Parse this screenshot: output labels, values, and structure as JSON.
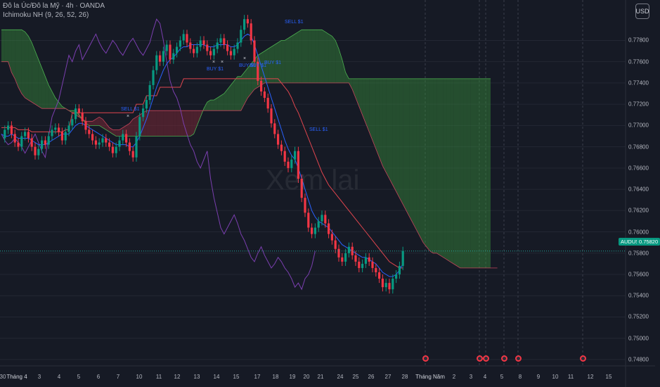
{
  "header": {
    "symbol_line": "Đô la Úc/Đô la Mỹ · 4h · OANDA",
    "indicator_line": "Ichimoku NH (9, 26, 52, 26)"
  },
  "currency_button": "USD",
  "watermark": "Xem lai",
  "price_badge": {
    "symbol": "AUDUSD",
    "price": "0.75820"
  },
  "signals": [
    "SELL $1",
    "BUY $1",
    "BUY $1",
    "BUY $1",
    "BUY $1",
    "SELL $1",
    "SELL $1"
  ],
  "colors": {
    "background": "#161a25",
    "up_candle": "#089981",
    "down_candle": "#f23645",
    "tenkan": "#2962ff",
    "kijun": "#e0454e",
    "chikou": "#7b3fb0",
    "cloud_bull": "#388e3c",
    "cloud_bear": "#8b2a3a",
    "price_line": "#26a69a"
  },
  "chart_data": {
    "type": "candlestick",
    "title": "Đô la Úc/Đô la Mỹ · 4h · OANDA",
    "indicator": "Ichimoku NH (9, 26, 52, 26)",
    "y_ticks": [
      "0.77800",
      "0.77600",
      "0.77400",
      "0.77200",
      "0.77000",
      "0.76800",
      "0.76600",
      "0.76400",
      "0.76200",
      "0.76000",
      "0.75800",
      "0.75600",
      "0.75400",
      "0.75200",
      "0.75000",
      "0.74800"
    ],
    "x_ticks": [
      "30",
      "Tháng 4",
      "3",
      "4",
      "5",
      "6",
      "7",
      "10",
      "11",
      "12",
      "13",
      "14",
      "15",
      "17",
      "18",
      "19",
      "20",
      "21",
      "24",
      "25",
      "26",
      "27",
      "28",
      "Tháng Năm",
      "2",
      "3",
      "4",
      "5",
      "8",
      "9",
      "10",
      "11",
      "12",
      "15"
    ],
    "ylim": [
      0.7474,
      0.7818
    ],
    "last_price": 0.7582,
    "grid": true,
    "close": [
      0.7688,
      0.7696,
      0.77,
      0.7692,
      0.7684,
      0.768,
      0.769,
      0.7694,
      0.7688,
      0.768,
      0.7672,
      0.7678,
      0.7686,
      0.7682,
      0.769,
      0.7696,
      0.7698,
      0.7694,
      0.7686,
      0.7694,
      0.77,
      0.7706,
      0.7716,
      0.7712,
      0.7704,
      0.7696,
      0.7692,
      0.7686,
      0.7682,
      0.7684,
      0.7688,
      0.7684,
      0.768,
      0.7674,
      0.768,
      0.7686,
      0.7692,
      0.7684,
      0.7676,
      0.767,
      0.769,
      0.7708,
      0.7716,
      0.7724,
      0.7738,
      0.7752,
      0.7766,
      0.776,
      0.777,
      0.7776,
      0.7762,
      0.7768,
      0.7774,
      0.778,
      0.7786,
      0.7778,
      0.7772,
      0.7768,
      0.7774,
      0.778,
      0.7776,
      0.777,
      0.7766,
      0.7772,
      0.7778,
      0.7782,
      0.7776,
      0.777,
      0.7766,
      0.7772,
      0.7778,
      0.779,
      0.78,
      0.7796,
      0.778,
      0.776,
      0.7742,
      0.7732,
      0.7726,
      0.7716,
      0.7702,
      0.7692,
      0.7682,
      0.7676,
      0.7666,
      0.766,
      0.7668,
      0.7676,
      0.765,
      0.7632,
      0.7618,
      0.7604,
      0.7598,
      0.7604,
      0.761,
      0.7616,
      0.7608,
      0.7598,
      0.7592,
      0.7584,
      0.7576,
      0.7572,
      0.758,
      0.7586,
      0.7578,
      0.7572,
      0.7566,
      0.757,
      0.7576,
      0.7572,
      0.7566,
      0.7562,
      0.7556,
      0.7548,
      0.7552,
      0.7546,
      0.7556,
      0.756,
      0.7568,
      0.7582
    ],
    "tenkan": [
      0.7692,
      0.769,
      0.769,
      0.7692,
      0.769,
      0.7688,
      0.7688,
      0.7688,
      0.7688,
      0.7686,
      0.7684,
      0.7682,
      0.7682,
      0.7682,
      0.7684,
      0.7686,
      0.7688,
      0.769,
      0.7692,
      0.7692,
      0.7692,
      0.7696,
      0.77,
      0.7702,
      0.7702,
      0.77,
      0.7698,
      0.7696,
      0.7694,
      0.7692,
      0.769,
      0.7688,
      0.7686,
      0.7684,
      0.7682,
      0.7682,
      0.7682,
      0.7682,
      0.768,
      0.768,
      0.7684,
      0.769,
      0.7698,
      0.7706,
      0.7716,
      0.7726,
      0.7736,
      0.7744,
      0.7752,
      0.7758,
      0.7762,
      0.7764,
      0.7768,
      0.7772,
      0.7774,
      0.7774,
      0.7776,
      0.7776,
      0.7776,
      0.7776,
      0.7776,
      0.7774,
      0.7774,
      0.7774,
      0.7776,
      0.7776,
      0.7776,
      0.7776,
      0.7774,
      0.7774,
      0.7776,
      0.778,
      0.7784,
      0.7786,
      0.7784,
      0.7776,
      0.7766,
      0.7756,
      0.7746,
      0.7736,
      0.7726,
      0.7716,
      0.7706,
      0.7696,
      0.7686,
      0.7678,
      0.7672,
      0.7668,
      0.766,
      0.765,
      0.764,
      0.763,
      0.762,
      0.7614,
      0.761,
      0.7608,
      0.7606,
      0.7604,
      0.76,
      0.7596,
      0.7592,
      0.7588,
      0.7586,
      0.7584,
      0.7582,
      0.758,
      0.7578,
      0.7576,
      0.7576,
      0.7574,
      0.7572,
      0.757,
      0.7566,
      0.7562,
      0.756,
      0.7558,
      0.7558,
      0.756,
      0.7564,
      0.757
    ],
    "kijun": [
      0.7698,
      0.7698,
      0.7698,
      0.7698,
      0.7698,
      0.7696,
      0.7696,
      0.7696,
      0.7696,
      0.7694,
      0.7694,
      0.7694,
      0.7694,
      0.7694,
      0.7694,
      0.7694,
      0.7694,
      0.7694,
      0.7694,
      0.7696,
      0.7696,
      0.7712,
      0.7712,
      0.7712,
      0.7712,
      0.7712,
      0.7712,
      0.7712,
      0.7712,
      0.7712,
      0.7712,
      0.7712,
      0.7712,
      0.7712,
      0.7712,
      0.7712,
      0.7712,
      0.7712,
      0.7712,
      0.7712,
      0.772,
      0.772,
      0.772,
      0.7728,
      0.7728,
      0.7728,
      0.7728,
      0.7736,
      0.7736,
      0.7736,
      0.7736,
      0.7736,
      0.7736,
      0.7736,
      0.7744,
      0.7744,
      0.7744,
      0.7744,
      0.7744,
      0.7744,
      0.7744,
      0.7744,
      0.7744,
      0.7744,
      0.7744,
      0.7744,
      0.7744,
      0.7744,
      0.7744,
      0.7744,
      0.7744,
      0.7744,
      0.7744,
      0.7744,
      0.7744,
      0.7744,
      0.7744,
      0.7744,
      0.7744,
      0.7744,
      0.7744,
      0.7744,
      0.7744,
      0.774,
      0.7736,
      0.7732,
      0.7726,
      0.7718,
      0.7712,
      0.7704,
      0.7696,
      0.7688,
      0.768,
      0.7672,
      0.7664,
      0.7656,
      0.765,
      0.7644,
      0.764,
      0.7636,
      0.7632,
      0.7628,
      0.7624,
      0.762,
      0.7616,
      0.7612,
      0.7608,
      0.7604,
      0.76,
      0.7596,
      0.7592,
      0.7588,
      0.7584,
      0.758,
      0.7576,
      0.7572,
      0.757,
      0.7568,
      0.7566,
      0.7566
    ],
    "span_a": [
      0.779,
      0.779,
      0.779,
      0.779,
      0.779,
      0.779,
      0.779,
      0.7788,
      0.7784,
      0.7778,
      0.777,
      0.7762,
      0.7754,
      0.7746,
      0.7738,
      0.7732,
      0.7726,
      0.7722,
      0.7718,
      0.7716,
      0.7714,
      0.7714,
      0.7714,
      0.771,
      0.7706,
      0.7702,
      0.77,
      0.77,
      0.77,
      0.77,
      0.7698,
      0.7696,
      0.7694,
      0.7692,
      0.769,
      0.769,
      0.769,
      0.769,
      0.769,
      0.769,
      0.769,
      0.769,
      0.769,
      0.769,
      0.769,
      0.769,
      0.769,
      0.769,
      0.769,
      0.769,
      0.769,
      0.769,
      0.769,
      0.769,
      0.769,
      0.769,
      0.769,
      0.7692,
      0.77,
      0.7708,
      0.7716,
      0.7722,
      0.7724,
      0.7724,
      0.7726,
      0.7728,
      0.773,
      0.7734,
      0.7738,
      0.7742,
      0.7746,
      0.7746,
      0.775,
      0.7754,
      0.7758,
      0.7762,
      0.7766,
      0.7768,
      0.777,
      0.7772,
      0.7774,
      0.7776,
      0.7778,
      0.778,
      0.778,
      0.7782,
      0.7784,
      0.7786,
      0.7788,
      0.779,
      0.779,
      0.779,
      0.779,
      0.779,
      0.779,
      0.779,
      0.7788,
      0.7786,
      0.7784,
      0.778,
      0.7772,
      0.7762,
      0.775,
      0.7744,
      0.7744,
      0.7744,
      0.7744,
      0.7744,
      0.7744,
      0.7744,
      0.7744,
      0.7744,
      0.7744,
      0.7744,
      0.7744,
      0.7744,
      0.7744,
      0.7744,
      0.7744,
      0.7744,
      0.7744,
      0.7744,
      0.7744,
      0.7744,
      0.7744,
      0.7744,
      0.7744,
      0.7744,
      0.7744,
      0.7744,
      0.7744,
      0.7744,
      0.7744,
      0.7744,
      0.7744,
      0.7744,
      0.7744,
      0.7744,
      0.7744,
      0.7744,
      0.7744,
      0.7744,
      0.7744,
      0.7744,
      0.7744,
      0.7744
    ],
    "span_b": [
      0.776,
      0.776,
      0.776,
      0.775,
      0.7744,
      0.7736,
      0.773,
      0.7726,
      0.7724,
      0.7722,
      0.772,
      0.7718,
      0.7716,
      0.7716,
      0.7716,
      0.7716,
      0.7716,
      0.7716,
      0.7716,
      0.7716,
      0.7714,
      0.7712,
      0.771,
      0.7708,
      0.7706,
      0.7704,
      0.7704,
      0.7704,
      0.7706,
      0.7708,
      0.7706,
      0.7702,
      0.7698,
      0.7696,
      0.7696,
      0.7696,
      0.7698,
      0.77,
      0.7702,
      0.7706,
      0.7708,
      0.771,
      0.7712,
      0.7714,
      0.7714,
      0.7714,
      0.7714,
      0.7714,
      0.7714,
      0.7714,
      0.7714,
      0.7714,
      0.7714,
      0.7714,
      0.7714,
      0.7714,
      0.7714,
      0.7714,
      0.7714,
      0.7714,
      0.7714,
      0.7714,
      0.7714,
      0.7714,
      0.7714,
      0.7714,
      0.7714,
      0.7714,
      0.7714,
      0.7714,
      0.7714,
      0.7714,
      0.772,
      0.7726,
      0.773,
      0.7734,
      0.7736,
      0.7738,
      0.774,
      0.774,
      0.774,
      0.774,
      0.774,
      0.774,
      0.774,
      0.774,
      0.774,
      0.774,
      0.774,
      0.774,
      0.774,
      0.774,
      0.774,
      0.774,
      0.774,
      0.774,
      0.774,
      0.774,
      0.774,
      0.774,
      0.774,
      0.774,
      0.774,
      0.774,
      0.7734,
      0.7726,
      0.7718,
      0.771,
      0.7702,
      0.7694,
      0.7686,
      0.7678,
      0.767,
      0.7662,
      0.7656,
      0.765,
      0.7644,
      0.7638,
      0.7632,
      0.7626,
      0.762,
      0.7614,
      0.7608,
      0.7602,
      0.7596,
      0.759,
      0.7586,
      0.7582,
      0.758,
      0.758,
      0.7578,
      0.7576,
      0.7574,
      0.7572,
      0.757,
      0.7568,
      0.7566,
      0.7566,
      0.7566,
      0.7566,
      0.7566,
      0.7566,
      0.7566,
      0.7566,
      0.7566,
      0.7566,
      0.7566,
      0.7566
    ]
  }
}
